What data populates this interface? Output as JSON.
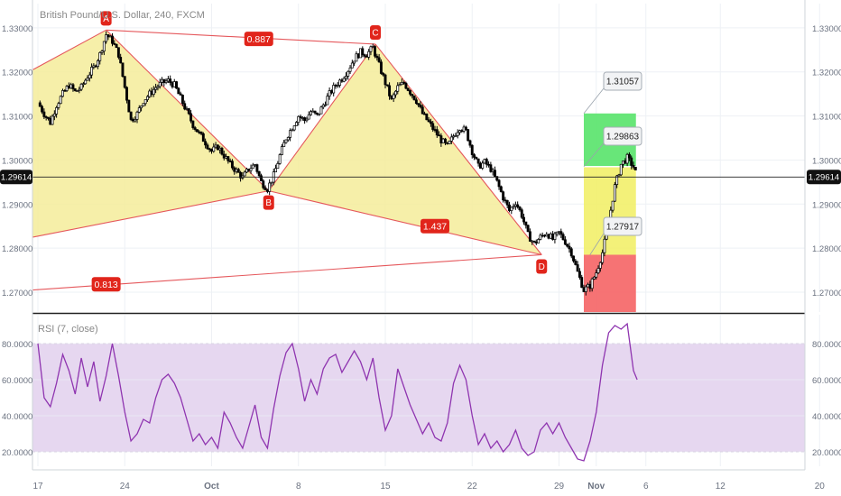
{
  "header": {
    "symbol_title": "British Pound/U.S. Dollar, 240, FXCM"
  },
  "colors": {
    "up_candle": "#ffffff",
    "down_candle": "#000000",
    "pattern_fill": "#f5ec9a",
    "pattern_line": "#e5585c",
    "label_red": "#e1251b",
    "target_green": "#58e36a",
    "entry_yellow": "#f2ef6a",
    "stop_red": "#f56465",
    "rsi_line": "#8f35b0",
    "rsi_band": "#e6d7f0"
  },
  "chart_data": [
    {
      "type": "candlestick",
      "name": "price-pane",
      "title": "British Pound/U.S. Dollar, 240, FXCM",
      "y_ticks": [
        "1.33000",
        "1.32000",
        "1.31000",
        "1.30000",
        "1.29000",
        "1.28000",
        "1.27000"
      ],
      "ylim": [
        1.2655,
        1.3355
      ],
      "x_ticks": [
        {
          "label": "17",
          "day": 0
        },
        {
          "label": "24",
          "day": 7
        },
        {
          "label": "Oct",
          "day": 14
        },
        {
          "label": "8",
          "day": 21
        },
        {
          "label": "15",
          "day": 28
        },
        {
          "label": "22",
          "day": 35
        },
        {
          "label": "29",
          "day": 42
        },
        {
          "label": "Nov",
          "day": 45
        },
        {
          "label": "6",
          "day": 49
        },
        {
          "label": "12",
          "day": 55
        },
        {
          "label": "20",
          "day": 63
        }
      ],
      "current_price": "1.29614",
      "harmonic_points": [
        {
          "label": "A",
          "day": 5.5,
          "price": 1.3295
        },
        {
          "label": "B",
          "day": 18.6,
          "price": 1.293
        },
        {
          "label": "C",
          "day": 27.2,
          "price": 1.3263
        },
        {
          "label": "D",
          "day": 40.6,
          "price": 1.2785
        }
      ],
      "pattern_left_points": [
        {
          "day": -0.4,
          "price": 1.3205
        },
        {
          "day": -0.4,
          "price": 1.2825
        },
        {
          "day": -0.4,
          "price": 1.2705
        }
      ],
      "ratio_labels": [
        {
          "text": "0.887",
          "day": 17.8,
          "price": 1.3275
        },
        {
          "text": "1.437",
          "day": 32.0,
          "price": 1.285
        },
        {
          "text": "0.813",
          "day": 5.5,
          "price": 1.2718
        }
      ],
      "price_targets": [
        "1.31057",
        "1.29863",
        "1.27917"
      ],
      "zones": [
        {
          "name": "target",
          "from": 1.2985,
          "to": 1.31057,
          "start_day": 44.0,
          "end_day": 48.2
        },
        {
          "name": "entry",
          "from": 1.2785,
          "to": 1.2985,
          "start_day": 44.0,
          "end_day": 48.2
        },
        {
          "name": "stop",
          "from": 1.2655,
          "to": 1.2785,
          "start_day": 44.0,
          "end_day": 48.2
        }
      ],
      "candle_close_path": [
        {
          "day": 0,
          "price": 1.313
        },
        {
          "day": 0.5,
          "price": 1.3105
        },
        {
          "day": 1,
          "price": 1.3085
        },
        {
          "day": 1.5,
          "price": 1.3125
        },
        {
          "day": 2,
          "price": 1.315
        },
        {
          "day": 2.5,
          "price": 1.317
        },
        {
          "day": 3,
          "price": 1.3155
        },
        {
          "day": 3.5,
          "price": 1.3165
        },
        {
          "day": 4,
          "price": 1.319
        },
        {
          "day": 4.5,
          "price": 1.321
        },
        {
          "day": 5,
          "price": 1.324
        },
        {
          "day": 5.5,
          "price": 1.3285
        },
        {
          "day": 6,
          "price": 1.327
        },
        {
          "day": 6.5,
          "price": 1.324
        },
        {
          "day": 7,
          "price": 1.3165
        },
        {
          "day": 7.5,
          "price": 1.309
        },
        {
          "day": 8,
          "price": 1.3105
        },
        {
          "day": 8.5,
          "price": 1.3135
        },
        {
          "day": 9,
          "price": 1.315
        },
        {
          "day": 9.5,
          "price": 1.3165
        },
        {
          "day": 10,
          "price": 1.3175
        },
        {
          "day": 10.5,
          "price": 1.318
        },
        {
          "day": 11,
          "price": 1.317
        },
        {
          "day": 11.5,
          "price": 1.314
        },
        {
          "day": 12,
          "price": 1.311
        },
        {
          "day": 12.5,
          "price": 1.308
        },
        {
          "day": 13,
          "price": 1.306
        },
        {
          "day": 13.5,
          "price": 1.304
        },
        {
          "day": 14,
          "price": 1.302
        },
        {
          "day": 14.5,
          "price": 1.303
        },
        {
          "day": 15,
          "price": 1.301
        },
        {
          "day": 15.5,
          "price": 1.299
        },
        {
          "day": 16,
          "price": 1.2975
        },
        {
          "day": 16.5,
          "price": 1.296
        },
        {
          "day": 17,
          "price": 1.298
        },
        {
          "day": 17.5,
          "price": 1.299
        },
        {
          "day": 18,
          "price": 1.295
        },
        {
          "day": 18.5,
          "price": 1.2935
        },
        {
          "day": 19,
          "price": 1.2965
        },
        {
          "day": 19.5,
          "price": 1.301
        },
        {
          "day": 20,
          "price": 1.305
        },
        {
          "day": 20.5,
          "price": 1.3075
        },
        {
          "day": 21,
          "price": 1.31
        },
        {
          "day": 21.5,
          "price": 1.309
        },
        {
          "day": 22,
          "price": 1.311
        },
        {
          "day": 22.5,
          "price": 1.31
        },
        {
          "day": 23,
          "price": 1.3125
        },
        {
          "day": 23.5,
          "price": 1.315
        },
        {
          "day": 24,
          "price": 1.317
        },
        {
          "day": 24.5,
          "price": 1.3185
        },
        {
          "day": 25,
          "price": 1.3205
        },
        {
          "day": 25.5,
          "price": 1.323
        },
        {
          "day": 26,
          "price": 1.3245
        },
        {
          "day": 26.5,
          "price": 1.324
        },
        {
          "day": 27,
          "price": 1.3255
        },
        {
          "day": 27.5,
          "price": 1.3215
        },
        {
          "day": 28,
          "price": 1.3175
        },
        {
          "day": 28.5,
          "price": 1.3135
        },
        {
          "day": 29,
          "price": 1.3165
        },
        {
          "day": 29.5,
          "price": 1.3175
        },
        {
          "day": 30,
          "price": 1.3155
        },
        {
          "day": 30.5,
          "price": 1.3135
        },
        {
          "day": 31,
          "price": 1.3105
        },
        {
          "day": 31.5,
          "price": 1.3085
        },
        {
          "day": 32,
          "price": 1.3065
        },
        {
          "day": 32.5,
          "price": 1.3045
        },
        {
          "day": 33,
          "price": 1.303
        },
        {
          "day": 33.5,
          "price": 1.3055
        },
        {
          "day": 34,
          "price": 1.3075
        },
        {
          "day": 34.5,
          "price": 1.3065
        },
        {
          "day": 35,
          "price": 1.302
        },
        {
          "day": 35.5,
          "price": 1.2985
        },
        {
          "day": 36,
          "price": 1.2995
        },
        {
          "day": 36.5,
          "price": 1.298
        },
        {
          "day": 37,
          "price": 1.295
        },
        {
          "day": 37.5,
          "price": 1.2915
        },
        {
          "day": 38,
          "price": 1.2885
        },
        {
          "day": 38.5,
          "price": 1.2905
        },
        {
          "day": 39,
          "price": 1.2875
        },
        {
          "day": 39.5,
          "price": 1.283
        },
        {
          "day": 40,
          "price": 1.281
        },
        {
          "day": 40.5,
          "price": 1.2825
        },
        {
          "day": 41,
          "price": 1.2835
        },
        {
          "day": 41.5,
          "price": 1.282
        },
        {
          "day": 42,
          "price": 1.2835
        },
        {
          "day": 42.5,
          "price": 1.2815
        },
        {
          "day": 43,
          "price": 1.279
        },
        {
          "day": 43.5,
          "price": 1.2745
        },
        {
          "day": 44,
          "price": 1.2705
        },
        {
          "day": 44.5,
          "price": 1.2715
        },
        {
          "day": 45,
          "price": 1.2745
        },
        {
          "day": 45.5,
          "price": 1.279
        },
        {
          "day": 46,
          "price": 1.286
        },
        {
          "day": 46.5,
          "price": 1.294
        },
        {
          "day": 47,
          "price": 1.299
        },
        {
          "day": 47.5,
          "price": 1.3005
        },
        {
          "day": 48,
          "price": 1.2985
        },
        {
          "day": 48.3,
          "price": 1.2961
        }
      ]
    },
    {
      "type": "line",
      "name": "rsi-pane",
      "title": "RSI (7, close)",
      "y_ticks": [
        "80.0000",
        "60.0000",
        "40.0000",
        "20.0000"
      ],
      "ylim": [
        12,
        96
      ],
      "band": [
        20,
        80
      ],
      "current_value": "60.0000",
      "series": [
        {
          "values": [
            {
              "day": 0,
              "rsi": 80
            },
            {
              "day": 0.5,
              "rsi": 50
            },
            {
              "day": 1,
              "rsi": 45
            },
            {
              "day": 1.5,
              "rsi": 58
            },
            {
              "day": 2,
              "rsi": 74
            },
            {
              "day": 2.5,
              "rsi": 65
            },
            {
              "day": 3,
              "rsi": 52
            },
            {
              "day": 3.5,
              "rsi": 72
            },
            {
              "day": 4,
              "rsi": 56
            },
            {
              "day": 4.5,
              "rsi": 70
            },
            {
              "day": 5,
              "rsi": 48
            },
            {
              "day": 5.5,
              "rsi": 62
            },
            {
              "day": 6,
              "rsi": 80
            },
            {
              "day": 6.5,
              "rsi": 62
            },
            {
              "day": 7,
              "rsi": 42
            },
            {
              "day": 7.5,
              "rsi": 26
            },
            {
              "day": 8,
              "rsi": 30
            },
            {
              "day": 8.5,
              "rsi": 38
            },
            {
              "day": 9,
              "rsi": 36
            },
            {
              "day": 9.5,
              "rsi": 50
            },
            {
              "day": 10,
              "rsi": 60
            },
            {
              "day": 10.5,
              "rsi": 63
            },
            {
              "day": 11,
              "rsi": 58
            },
            {
              "day": 11.5,
              "rsi": 50
            },
            {
              "day": 12,
              "rsi": 38
            },
            {
              "day": 12.5,
              "rsi": 26
            },
            {
              "day": 13,
              "rsi": 30
            },
            {
              "day": 13.5,
              "rsi": 24
            },
            {
              "day": 14,
              "rsi": 28
            },
            {
              "day": 14.5,
              "rsi": 22
            },
            {
              "day": 15,
              "rsi": 42
            },
            {
              "day": 15.5,
              "rsi": 36
            },
            {
              "day": 16,
              "rsi": 28
            },
            {
              "day": 16.5,
              "rsi": 22
            },
            {
              "day": 17,
              "rsi": 34
            },
            {
              "day": 17.5,
              "rsi": 46
            },
            {
              "day": 18,
              "rsi": 28
            },
            {
              "day": 18.5,
              "rsi": 22
            },
            {
              "day": 19,
              "rsi": 44
            },
            {
              "day": 19.5,
              "rsi": 62
            },
            {
              "day": 20,
              "rsi": 75
            },
            {
              "day": 20.5,
              "rsi": 80
            },
            {
              "day": 21,
              "rsi": 66
            },
            {
              "day": 21.5,
              "rsi": 48
            },
            {
              "day": 22,
              "rsi": 60
            },
            {
              "day": 22.5,
              "rsi": 52
            },
            {
              "day": 23,
              "rsi": 66
            },
            {
              "day": 23.5,
              "rsi": 72
            },
            {
              "day": 24,
              "rsi": 74
            },
            {
              "day": 24.5,
              "rsi": 64
            },
            {
              "day": 25,
              "rsi": 70
            },
            {
              "day": 25.5,
              "rsi": 76
            },
            {
              "day": 26,
              "rsi": 70
            },
            {
              "day": 26.5,
              "rsi": 60
            },
            {
              "day": 27,
              "rsi": 72
            },
            {
              "day": 27.5,
              "rsi": 50
            },
            {
              "day": 28,
              "rsi": 32
            },
            {
              "day": 28.5,
              "rsi": 40
            },
            {
              "day": 29,
              "rsi": 66
            },
            {
              "day": 29.5,
              "rsi": 56
            },
            {
              "day": 30,
              "rsi": 46
            },
            {
              "day": 30.5,
              "rsi": 38
            },
            {
              "day": 31,
              "rsi": 30
            },
            {
              "day": 31.5,
              "rsi": 36
            },
            {
              "day": 32,
              "rsi": 28
            },
            {
              "day": 32.5,
              "rsi": 26
            },
            {
              "day": 33,
              "rsi": 36
            },
            {
              "day": 33.5,
              "rsi": 58
            },
            {
              "day": 34,
              "rsi": 68
            },
            {
              "day": 34.5,
              "rsi": 60
            },
            {
              "day": 35,
              "rsi": 40
            },
            {
              "day": 35.5,
              "rsi": 24
            },
            {
              "day": 36,
              "rsi": 30
            },
            {
              "day": 36.5,
              "rsi": 22
            },
            {
              "day": 37,
              "rsi": 26
            },
            {
              "day": 37.5,
              "rsi": 20
            },
            {
              "day": 38,
              "rsi": 24
            },
            {
              "day": 38.5,
              "rsi": 32
            },
            {
              "day": 39,
              "rsi": 22
            },
            {
              "day": 39.5,
              "rsi": 18
            },
            {
              "day": 40,
              "rsi": 20
            },
            {
              "day": 40.5,
              "rsi": 32
            },
            {
              "day": 41,
              "rsi": 36
            },
            {
              "day": 41.5,
              "rsi": 30
            },
            {
              "day": 42,
              "rsi": 36
            },
            {
              "day": 42.5,
              "rsi": 28
            },
            {
              "day": 43,
              "rsi": 22
            },
            {
              "day": 43.5,
              "rsi": 16
            },
            {
              "day": 44,
              "rsi": 15
            },
            {
              "day": 44.5,
              "rsi": 26
            },
            {
              "day": 45,
              "rsi": 42
            },
            {
              "day": 45.5,
              "rsi": 68
            },
            {
              "day": 46,
              "rsi": 86
            },
            {
              "day": 46.5,
              "rsi": 90
            },
            {
              "day": 47,
              "rsi": 88
            },
            {
              "day": 47.5,
              "rsi": 91
            },
            {
              "day": 48,
              "rsi": 65
            },
            {
              "day": 48.3,
              "rsi": 60
            }
          ]
        }
      ]
    }
  ]
}
